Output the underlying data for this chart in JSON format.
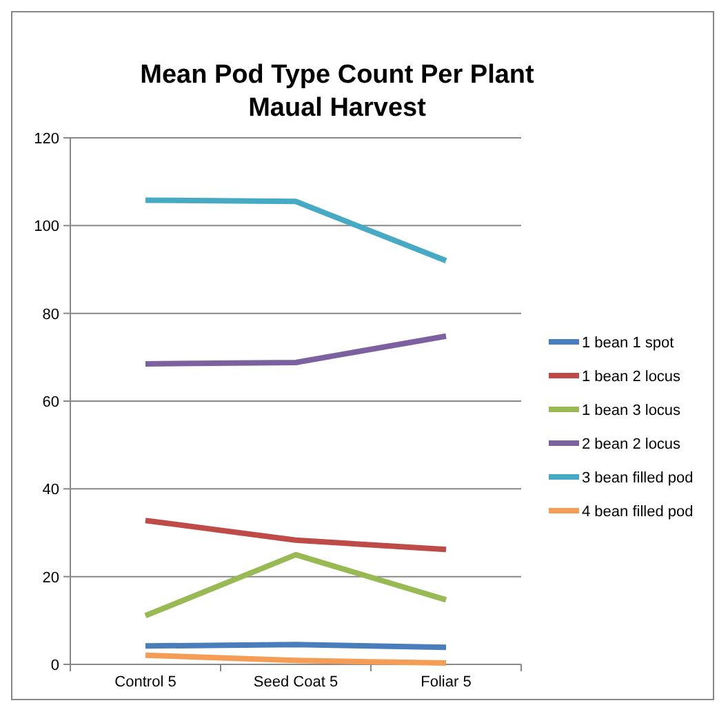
{
  "chart_data": {
    "type": "line",
    "title": "Mean Pod Type Count Per Plant\nMaual Harvest",
    "categories": [
      "Control 5",
      "Seed Coat 5",
      "Foliar 5"
    ],
    "series": [
      {
        "name": "1 bean 1 spot",
        "color": "#4a7ebb",
        "values": [
          4.2,
          4.5,
          3.9
        ]
      },
      {
        "name": "1 bean 2 locus",
        "color": "#be4b48",
        "values": [
          32.8,
          28.3,
          26.2
        ]
      },
      {
        "name": "1 bean 3 locus",
        "color": "#98b954",
        "values": [
          11.1,
          25,
          14.7
        ]
      },
      {
        "name": "2 bean 2 locus",
        "color": "#7d60a0",
        "values": [
          68.5,
          68.8,
          74.8
        ]
      },
      {
        "name": "3 bean filled pod",
        "color": "#46aac5",
        "values": [
          105.8,
          105.5,
          92
        ]
      },
      {
        "name": "4 bean filled pod",
        "color": "#f59d56",
        "values": [
          2.1,
          0.9,
          0.3
        ]
      }
    ],
    "ylim": [
      0,
      120
    ],
    "yticks": [
      0,
      20,
      40,
      60,
      80,
      100,
      120
    ],
    "grid": "y",
    "legend": "right",
    "marker": "none",
    "line_style": "solid"
  }
}
